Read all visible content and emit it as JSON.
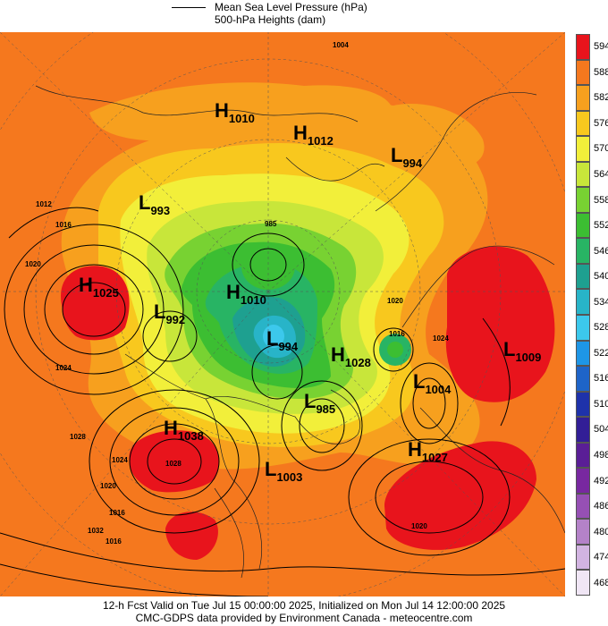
{
  "legend": {
    "line1": "Mean Sea Level Pressure (hPa)",
    "line2": "500-hPa Heights (dam)"
  },
  "footer": {
    "line1": "12-h Fcst Valid on Tue Jul 15 00:00:00 2025, Initialized on Mon Jul 14 12:00:00 2025",
    "line2": "CMC-GDPS data provided by Environment Canada - meteocentre.com"
  },
  "colorbar": {
    "levels": [
      "594",
      "588",
      "582",
      "576",
      "570",
      "564",
      "558",
      "552",
      "546",
      "540",
      "534",
      "528",
      "522",
      "516",
      "510",
      "504",
      "498",
      "492",
      "486",
      "480",
      "474",
      "468"
    ],
    "colors": [
      "#e8141c",
      "#f5781e",
      "#f7a01e",
      "#f8c81e",
      "#f2ef3a",
      "#c8e63a",
      "#78d232",
      "#3cbe32",
      "#28b464",
      "#1ea090",
      "#28b4c8",
      "#3cc8ec",
      "#1e96e6",
      "#1e64c8",
      "#1e32aa",
      "#321e96",
      "#5a1e96",
      "#7828a0",
      "#9650b4",
      "#b482c8",
      "#d2b4e1",
      "#f0e6f5"
    ]
  },
  "systems": [
    {
      "type": "H",
      "value": "1010"
    },
    {
      "type": "H",
      "value": "1012"
    },
    {
      "type": "L",
      "value": "994"
    },
    {
      "type": "L",
      "value": "993"
    },
    {
      "type": "H",
      "value": "1025"
    },
    {
      "type": "L",
      "value": "992"
    },
    {
      "type": "H",
      "value": "1010"
    },
    {
      "type": "L",
      "value": "994"
    },
    {
      "type": "H",
      "value": "1028"
    },
    {
      "type": "L",
      "value": "1004"
    },
    {
      "type": "L",
      "value": "1009"
    },
    {
      "type": "L",
      "value": "985"
    },
    {
      "type": "H",
      "value": "1038"
    },
    {
      "type": "H",
      "value": "1027"
    },
    {
      "type": "L",
      "value": "1003"
    }
  ],
  "contour_labels": [
    "1004",
    "1012",
    "1016",
    "1020",
    "1024",
    "1028",
    "1032",
    "985",
    "1016",
    "1020",
    "1024",
    "1016",
    "1020",
    "1024",
    "1028",
    "1016",
    "1020"
  ]
}
